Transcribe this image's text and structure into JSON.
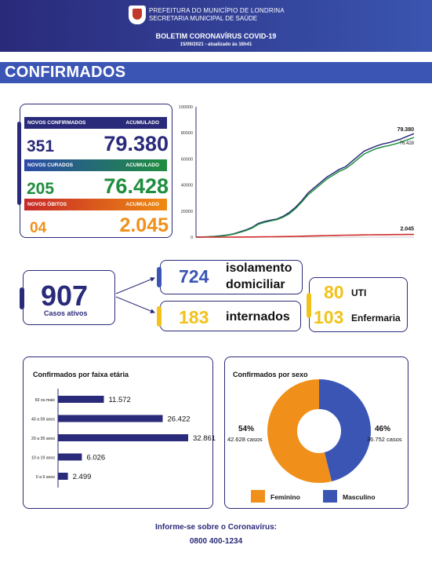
{
  "header": {
    "prefeitura": "PREFEITURA DO MUNICÍPIO DE LONDRINA",
    "secretaria": "SECRETARIA MUNICIPAL DE SAÚDE",
    "boletim": "BOLETIM CORONAVÍRUS COVID-19",
    "datetime": "15/09/2021 - atualizado às 16h41"
  },
  "section_title": "CONFIRMADOS",
  "stats": {
    "confirmados": {
      "label": "NOVOS CONFIRMADOS",
      "acc_label": "ACUMULADO",
      "new": "351",
      "acc": "79.380"
    },
    "curados": {
      "label": "NOVOS CURADOS",
      "acc_label": "ACUMULADO",
      "new": "205",
      "acc": "76.428"
    },
    "obitos": {
      "label": "NOVOS ÓBITOS",
      "acc_label": "ACUMULADO",
      "new": "04",
      "acc": "2.045"
    }
  },
  "active": {
    "total": "907",
    "total_label": "Casos ativos",
    "isolamento_value": "724",
    "isolamento_label_1": "isolamento",
    "isolamento_label_2": "domiciliar",
    "internados_value": "183",
    "internados_label": "internados",
    "uti_value": "80",
    "uti_label": "UTI",
    "enfermaria_value": "103",
    "enfermaria_label": "Enfermaria"
  },
  "colors": {
    "navy": "#2a2a7a",
    "blue": "#3b55b5",
    "green": "#1e8e3e",
    "orange": "#f0901a",
    "yellow": "#f2c21b",
    "red": "#d12b2b"
  },
  "chart_data": [
    {
      "type": "line",
      "ylim": [
        0,
        100000
      ],
      "yticks": [
        "100000",
        "80000",
        "60000",
        "40000",
        "20000",
        "0"
      ],
      "x": [
        0,
        1,
        2,
        3,
        4,
        5,
        6,
        7,
        8,
        9,
        10,
        11,
        12,
        13,
        14,
        15,
        16,
        17,
        18,
        19,
        20,
        21,
        22,
        23,
        24,
        25,
        26,
        27,
        28,
        29,
        30,
        31,
        32,
        33,
        34,
        35
      ],
      "series": [
        {
          "name": "Confirmados",
          "color": "#2a2a7a",
          "end_label": "79.380",
          "values": [
            0,
            100,
            300,
            600,
            1000,
            1600,
            2500,
            4000,
            5500,
            7500,
            10500,
            12000,
            13000,
            14000,
            16000,
            19000,
            23000,
            28000,
            34000,
            38000,
            42000,
            46000,
            49000,
            52000,
            54000,
            58000,
            62000,
            66000,
            68000,
            70000,
            71500,
            72500,
            74000,
            75500,
            77500,
            79380
          ]
        },
        {
          "name": "Curados",
          "color": "#1e8e3e",
          "end_label": "76.428",
          "values": [
            0,
            80,
            250,
            500,
            850,
            1400,
            2200,
            3600,
            5000,
            7000,
            9800,
            11300,
            12500,
            13500,
            15300,
            18000,
            22000,
            27000,
            32500,
            36500,
            40500,
            44500,
            47500,
            50500,
            52500,
            56000,
            60000,
            63800,
            66000,
            68000,
            69300,
            70300,
            71500,
            73000,
            74800,
            76428
          ]
        },
        {
          "name": "Óbitos",
          "color": "#d12b2b",
          "end_label": "2.045",
          "values": [
            0,
            2,
            5,
            10,
            20,
            30,
            45,
            70,
            100,
            140,
            190,
            240,
            290,
            340,
            400,
            480,
            580,
            700,
            820,
            940,
            1060,
            1180,
            1300,
            1400,
            1480,
            1560,
            1640,
            1720,
            1780,
            1840,
            1890,
            1930,
            1970,
            2000,
            2025,
            2045
          ]
        }
      ]
    },
    {
      "type": "bar",
      "title": "Confirmados por faixa etária",
      "categories": [
        "60 ou mais",
        "40 a 59 anos",
        "20 a 39 anos",
        "10 a 19 anos",
        "0 a 9 anos"
      ],
      "values": [
        11572,
        26422,
        32861,
        6026,
        2499
      ],
      "value_labels": [
        "11.572",
        "26.422",
        "32.861",
        "6.026",
        "2.499"
      ],
      "color": "#2a2a7a"
    },
    {
      "type": "pie",
      "title": "Confirmados por sexo",
      "slices": [
        {
          "name": "Feminino",
          "percent": 54,
          "percent_label": "54%",
          "cases_label": "42.628 casos",
          "color": "#f0901a"
        },
        {
          "name": "Masculino",
          "percent": 46,
          "percent_label": "46%",
          "cases_label": "36.752 casos",
          "color": "#3b55b5"
        }
      ]
    }
  ],
  "footer": {
    "line1": "Informe-se sobre o Coronavírus:",
    "line2": "0800 400-1234"
  }
}
